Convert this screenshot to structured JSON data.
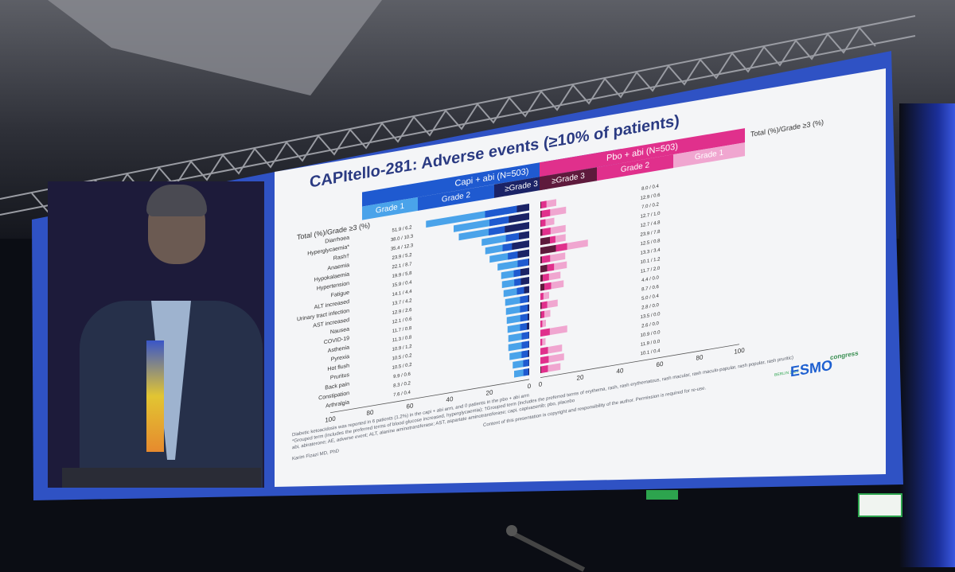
{
  "slide": {
    "title": "CAPItello-281: Adverse events (≥10% of patients)",
    "capi_header": "Capi + abi (N=503)",
    "pbo_header": "Pbo + abi (N=503)",
    "grade1": "Grade 1",
    "grade2": "Grade 2",
    "grade3": "≥Grade 3",
    "total_label": "Total (%)/Grade ≥3 (%)",
    "footnote1": "Diabetic ketoacidosis was reported in 6 patients (1.2%) in the capi + abi arm, and 0 patients in the pbo + abi arm",
    "footnote2": "*Grouped term (includes the preferred terms of blood glucose increased, hyperglycaemia); †Grouped term (includes the preferred terms of erythema, rash, rash erythematous, rash macular, rash maculo-papular, rash popular, rash pruritic)",
    "footnote3": "abi, abiraterone; AE, adverse event; ALT, alanine aminotransferase; AST, aspartate aminotransferase; capi, capivasertib; pbo, placebo",
    "presenter": "Karim Fizazi MD, PhD",
    "copyright": "Content of this presentation is copyright and responsibility of the author. Permission is required for re-use.",
    "logo_text": "ESMO",
    "logo_sub": "congress",
    "logo_city": "BERLIN 2025"
  },
  "colors": {
    "capi_g1": "#4aa3ea",
    "capi_g2": "#1f5ad0",
    "capi_g3": "#1b2366",
    "pbo_g1": "#f0a6d0",
    "pbo_g2": "#e0308c",
    "pbo_g3": "#5e1a3c"
  },
  "chart_data": {
    "type": "bar",
    "orientation": "horizontal-butterfly",
    "categories": [
      "Diarrhoea",
      "Hyperglycaemia*",
      "Rash†",
      "Anaemia",
      "Hypokalaemia",
      "Hypertension",
      "Fatigue",
      "ALT increased",
      "Urinary tract infection",
      "AST increased",
      "Nausea",
      "COVID-19",
      "Asthenia",
      "Pyrexia",
      "Hot flush",
      "Pruritus",
      "Back pain",
      "Constipation",
      "Arthralgia"
    ],
    "capi_labels": [
      "51.9 / 6.2",
      "38.0 / 10.3",
      "35.4 / 12.3",
      "23.9 / 5.2",
      "22.1 / 8.7",
      "19.9 / 5.8",
      "15.9 / 0.4",
      "14.1 / 4.4",
      "13.7 / 4.2",
      "12.9 / 2.6",
      "12.1 / 0.6",
      "11.7 / 0.8",
      "11.3 / 0.8",
      "10.9 / 1.2",
      "10.5 / 0.2",
      "10.5 / 0.2",
      "9.9 / 0.6",
      "8.3 / 0.2",
      "7.6 / 0.4"
    ],
    "pbo_labels": [
      "8.0 / 0.4",
      "12.9 / 0.6",
      "7.0 / 0.2",
      "12.7 / 1.0",
      "12.7 / 4.8",
      "23.9 / 7.8",
      "12.5 / 0.8",
      "13.3 / 3.4",
      "10.1 / 1.2",
      "11.7 / 2.0",
      "4.4 / 0.0",
      "8.7 / 0.6",
      "5.0 / 0.4",
      "2.8 / 0.0",
      "13.5 / 0.0",
      "2.6 / 0.0",
      "10.9 / 0.0",
      "11.9 / 0.0",
      "10.1 / 0.4"
    ],
    "series": [
      {
        "name": "Capi + abi total",
        "values": [
          51.9,
          38.0,
          35.4,
          23.9,
          22.1,
          19.9,
          15.9,
          14.1,
          13.7,
          12.9,
          12.1,
          11.7,
          11.3,
          10.9,
          10.5,
          10.5,
          9.9,
          8.3,
          7.6
        ]
      },
      {
        "name": "Capi + abi ≥Grade 3",
        "values": [
          6.2,
          10.3,
          12.3,
          5.2,
          8.7,
          5.8,
          0.4,
          4.4,
          4.2,
          2.6,
          0.6,
          0.8,
          0.8,
          1.2,
          0.2,
          0.2,
          0.6,
          0.2,
          0.4
        ]
      },
      {
        "name": "Pbo + abi total",
        "values": [
          8.0,
          12.9,
          7.0,
          12.7,
          12.7,
          23.9,
          12.5,
          13.3,
          10.1,
          11.7,
          4.4,
          8.7,
          5.0,
          2.8,
          13.5,
          2.6,
          10.9,
          11.9,
          10.1
        ]
      },
      {
        "name": "Pbo + abi ≥Grade 3",
        "values": [
          0.4,
          0.6,
          0.2,
          1.0,
          4.8,
          7.8,
          0.8,
          3.4,
          1.2,
          2.0,
          0.0,
          0.6,
          0.4,
          0.0,
          0.0,
          0.0,
          0.0,
          0.0,
          0.4
        ]
      }
    ],
    "left_ticks": [
      "100",
      "80",
      "60",
      "40",
      "20",
      "0"
    ],
    "right_ticks": [
      "0",
      "20",
      "40",
      "60",
      "80",
      "100"
    ],
    "xlim": [
      0,
      100
    ]
  }
}
